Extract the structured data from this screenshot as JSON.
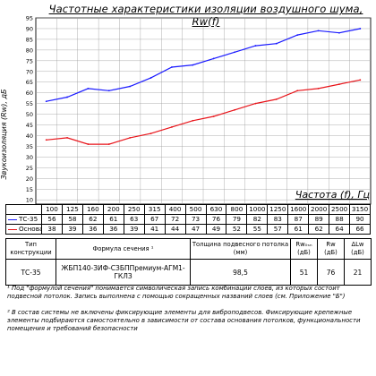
{
  "page_title": "Частотные характеристики изоляции воздушного шума, Rw(f)",
  "chart_data": {
    "type": "line",
    "x": [
      100,
      125,
      160,
      200,
      250,
      315,
      400,
      500,
      630,
      800,
      1000,
      1250,
      1600,
      2000,
      2500,
      3150
    ],
    "x_tick_labels": [
      "100",
      "125",
      "160",
      "200",
      "250",
      "315",
      "400",
      "500",
      "630",
      "800",
      "1000",
      "1250",
      "1600",
      "2000",
      "2500",
      "3150"
    ],
    "xlabel": "Частота (f), Гц",
    "ylabel": "Звукоизоляция (Rw), дБ",
    "y_ticks": [
      10,
      15,
      20,
      25,
      30,
      35,
      40,
      45,
      50,
      55,
      60,
      65,
      70,
      75,
      80,
      85,
      90,
      95
    ],
    "ylim": [
      8,
      95
    ],
    "grid": true,
    "series": [
      {
        "name": "ТС-35",
        "color": "#1a1aff",
        "values": [
          56,
          58,
          62,
          61,
          63,
          67,
          72,
          73,
          76,
          79,
          82,
          83,
          87,
          89,
          88,
          90
        ]
      },
      {
        "name": "Основа",
        "color": "#e8141a",
        "values": [
          38,
          39,
          36,
          36,
          39,
          41,
          44,
          47,
          49,
          52,
          55,
          57,
          61,
          62,
          64,
          66
        ]
      }
    ]
  },
  "freq_table": {
    "rows": [
      {
        "label": "ТС-35",
        "values": [
          "56",
          "58",
          "62",
          "61",
          "63",
          "67",
          "72",
          "73",
          "76",
          "79",
          "82",
          "83",
          "87",
          "89",
          "88",
          "90"
        ]
      },
      {
        "label": "Основа",
        "values": [
          "38",
          "39",
          "36",
          "36",
          "39",
          "41",
          "44",
          "47",
          "49",
          "52",
          "55",
          "57",
          "61",
          "62",
          "64",
          "66"
        ]
      }
    ]
  },
  "spec_table": {
    "headers": {
      "type": "Тип конструкции",
      "formula": "Формула сечения ¹",
      "thickness": "Толщина подвесного потолка (мм)",
      "rw_base": "Rw₀ₛₙ (дБ)",
      "rw": "Rw (дБ)",
      "delta": "ΔLw (дБ)"
    },
    "row": {
      "type": "ТС-35",
      "formula": "ЖБП140-ЗИФ-СЗБППремиум-АГМ1-ГКЛЗ",
      "thickness": "98,5",
      "rw_base": "51",
      "rw": "76",
      "delta": "21"
    }
  },
  "notes": [
    "¹ Под \"формулой сечения\" понимается символическая запись комбинации слоев, из которых состоит подвесной потолок. Запись выполнена с помощью сокращенных названий слоев (см. Приложение \"Б\")",
    "² В состав системы не включены фиксирующие элементы для виброподвесов. Фиксирующие крепежные элементы подбираются самостоятельно в зависимости от состава основания потолков, функциональности помещения и требований безопасности"
  ]
}
